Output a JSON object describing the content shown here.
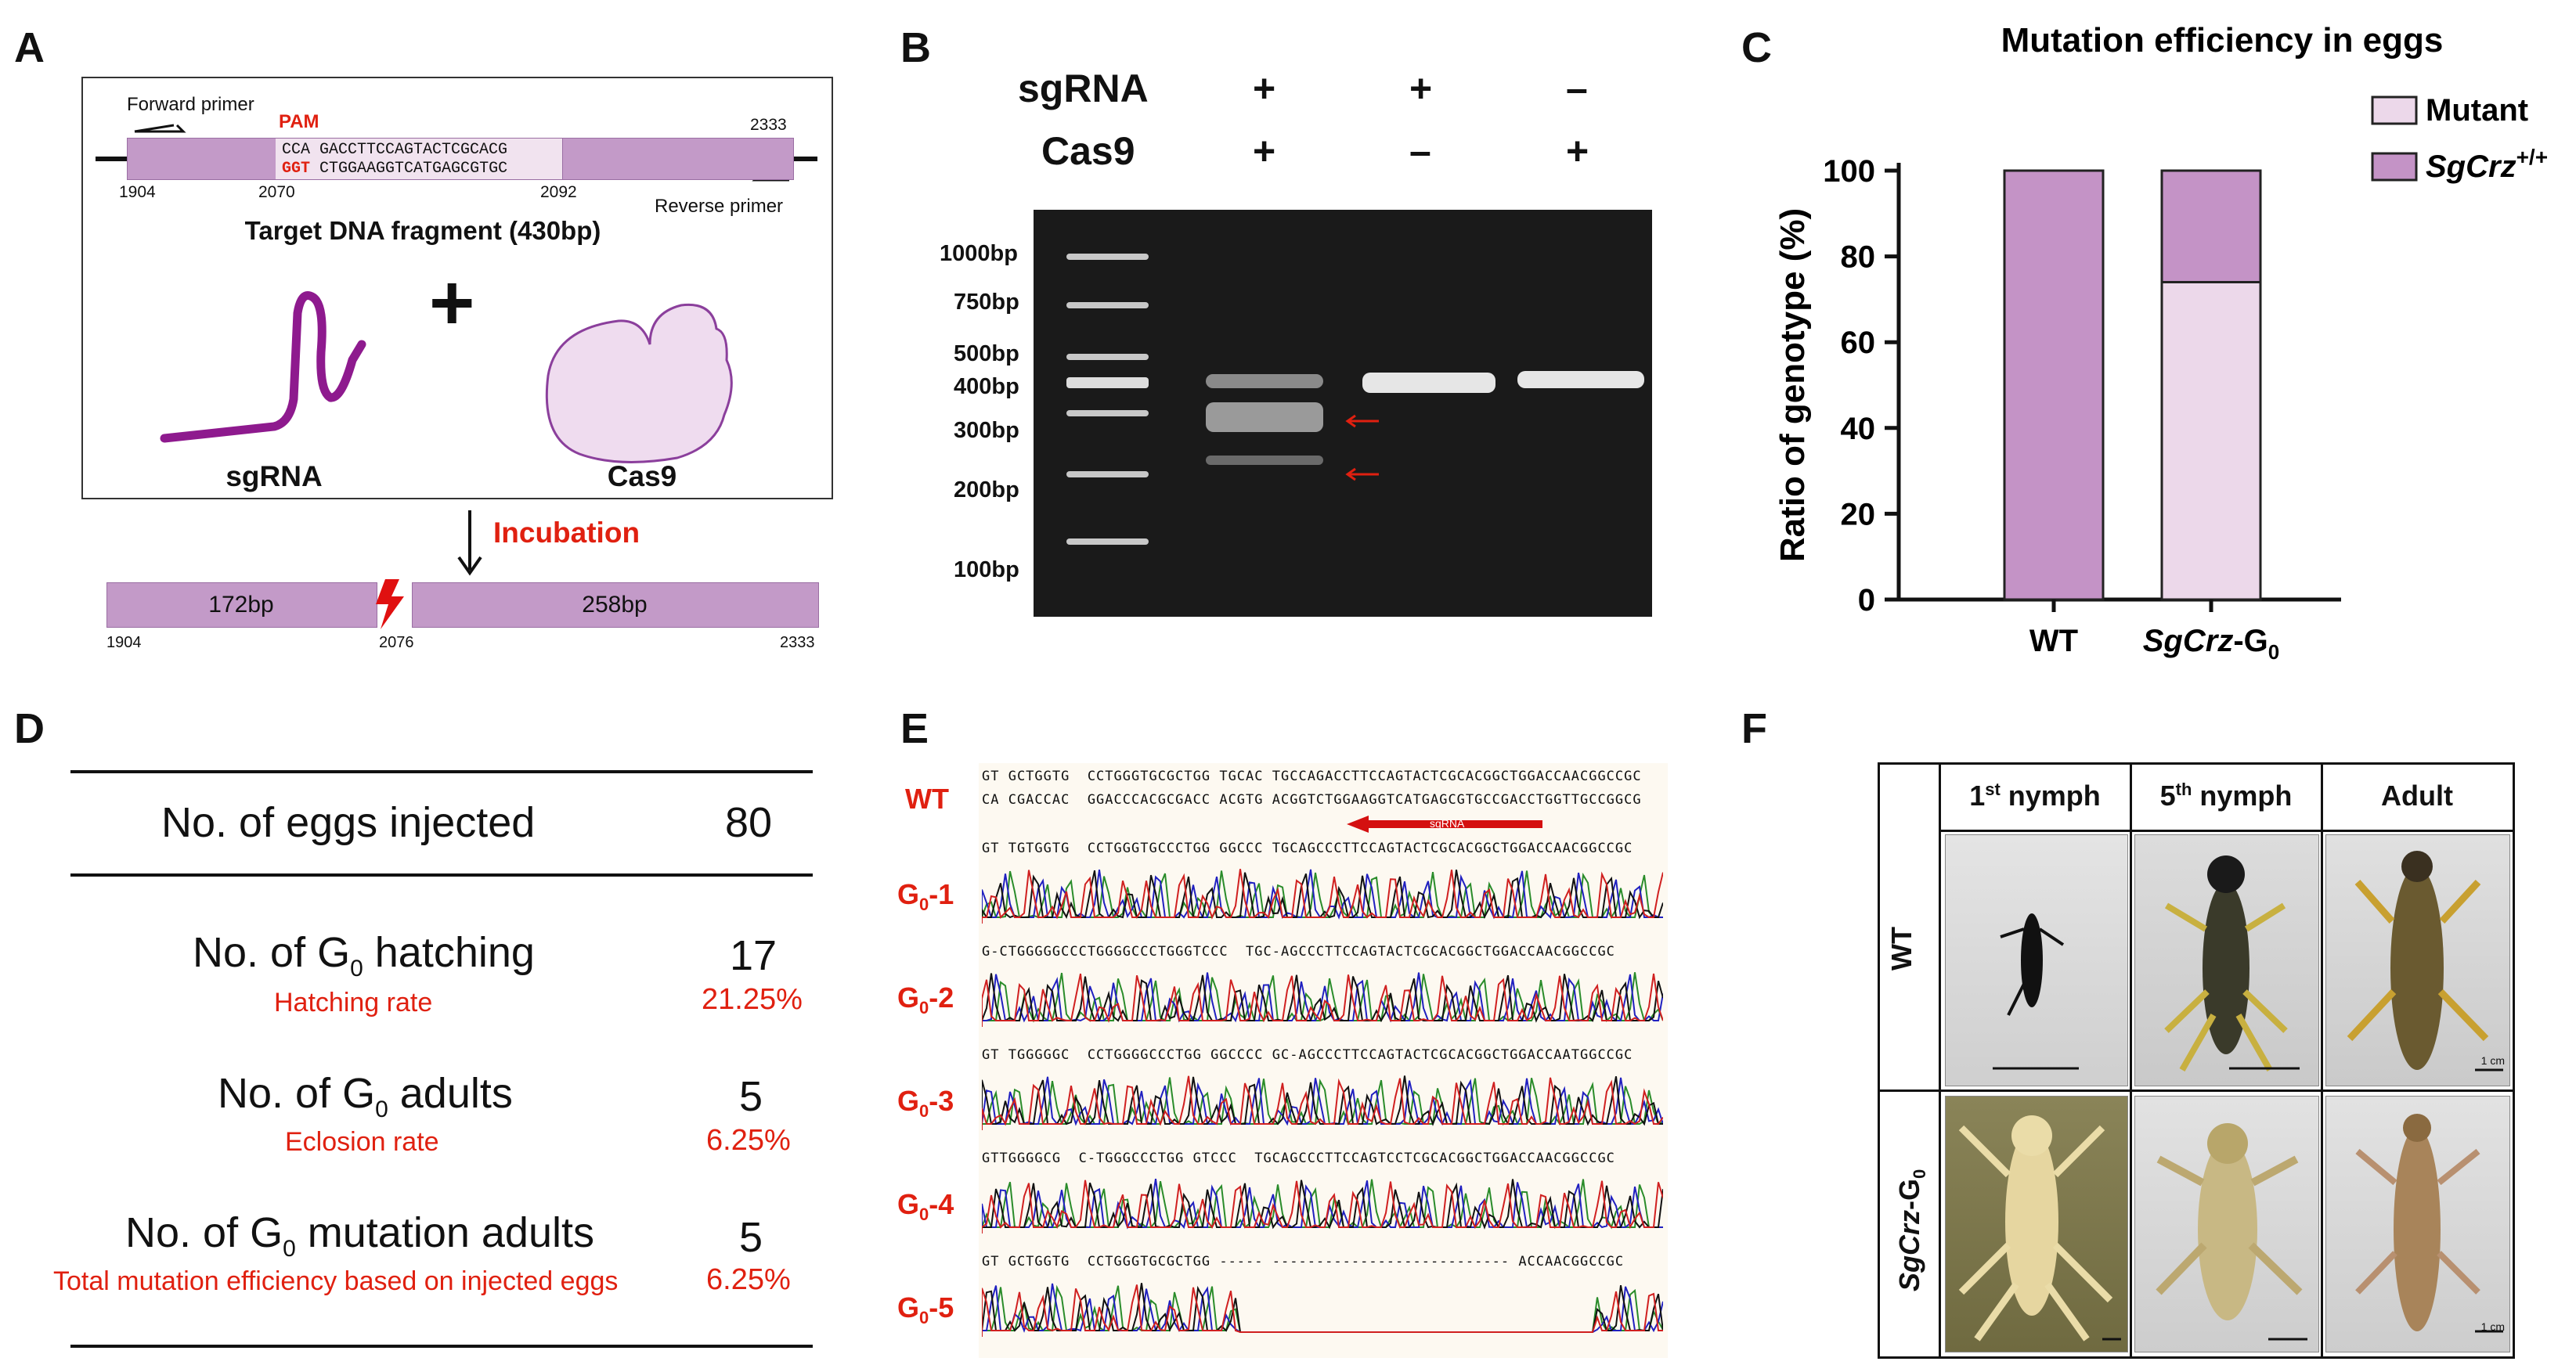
{
  "panels": {
    "a": "A",
    "b": "B",
    "c": "C",
    "d": "D",
    "e": "E",
    "f": "F"
  },
  "panelA": {
    "forward_primer": "Forward primer",
    "reverse_primer": "Reverse primer",
    "pam": "PAM",
    "seq_top": "CCA GACCTTCCAGTACTCGCACG",
    "seq_bottom_pam": "GGT",
    "seq_bottom": "CTGGAAGGTCATGAGCGTGC",
    "pos_1904": "1904",
    "pos_2070": "2070",
    "pos_2092": "2092",
    "pos_2333": "2333",
    "fragment_title": "Target DNA fragment (430bp)",
    "plus": "+",
    "sgrna": "sgRNA",
    "cas9": "Cas9",
    "incubation": "Incubation",
    "frag_left": "172bp",
    "frag_right": "258bp",
    "cut_pos": "2076",
    "bottom_1904": "1904",
    "bottom_2333": "2333"
  },
  "panelB": {
    "row1_label": "sgRNA",
    "row2_label": "Cas9",
    "lane1": {
      "sgrna": "+",
      "cas9": "+"
    },
    "lane2": {
      "sgrna": "+",
      "cas9": "–"
    },
    "lane3": {
      "sgrna": "–",
      "cas9": "+"
    },
    "ladder": [
      "1000bp",
      "750bp",
      "500bp",
      "400bp",
      "300bp",
      "200bp",
      "100bp"
    ]
  },
  "chart_data": {
    "type": "bar",
    "stacked": true,
    "title": "Mutation efficiency in eggs",
    "ylabel": "Ratio of  genotype (%)",
    "xlabel": "",
    "ylim": [
      0,
      100
    ],
    "yticks": [
      "0",
      "20",
      "40",
      "60",
      "80",
      "100"
    ],
    "categories": [
      "WT",
      "SgCrz-G0"
    ],
    "category_main": [
      "WT",
      "SgCrz"
    ],
    "category_suffix": [
      "",
      "-G"
    ],
    "category_sub": [
      "",
      "0"
    ],
    "series": [
      {
        "name": "Mutant",
        "values": [
          0,
          74
        ],
        "color": "#ecd8ea"
      },
      {
        "name": "SgCrz+/+",
        "values": [
          100,
          26
        ],
        "color": "#c493c6"
      }
    ],
    "legend": [
      {
        "text": "Mutant",
        "italic": false,
        "sup": ""
      },
      {
        "text": "SgCrz",
        "italic": true,
        "sup": "+/+"
      }
    ],
    "legend_position": "top-right"
  },
  "panelD": {
    "row1_label": "No. of eggs injected",
    "row1_value": "80",
    "row2_label_pre": "No. of G",
    "row2_sub": "0",
    "row2_label_post": " hatching",
    "row2_value": "17",
    "row2_rate_label": "Hatching rate",
    "row2_rate": "21.25%",
    "row3_label_pre": "No. of G",
    "row3_sub": "0",
    "row3_label_post": " adults",
    "row3_value": "5",
    "row3_rate_label": "Eclosion rate",
    "row3_rate": "6.25%",
    "row4_label_pre": "No. of G",
    "row4_sub": "0",
    "row4_label_post": " mutation adults",
    "row4_value": "5",
    "row4_rate_label": "Total mutation efficiency based on injected eggs",
    "row4_rate": "6.25%"
  },
  "panelE": {
    "wt": "WT",
    "sgrna_arrow": "sgRNA",
    "g_prefix": "G",
    "g_sub": "0",
    "samples": [
      "-1",
      "-2",
      "-3",
      "-4",
      "-5"
    ],
    "ref_seq": "GT GCTGGTG  CCTGGGTGCGCTGG TGCAC TGCCAGACCTTCCAGTACTCGCACGGCTGGACCAACGGCCGC",
    "ref_seq2": "CA CGACCAC  GGACCCACGCGACC ACGTG ACGGTCTGGAAGGTCATGAGCGTGCCGACCTGGTTGCCGGCG",
    "seqs": [
      "GT TGTGGTG  CCTGGGTGCCCTGG GGCCC TGCAGCCCTTCCAGTACTCGCACGGCTGGACCAACGGCCGC",
      "G-CTGGGGGCCCTGGGGCCCTGGGTCCC  TGC-AGCCCTTCCAGTACTCGCACGGCTGGACCAACGGCCGC",
      "GT TGGGGGC  CCTGGGGCCCTGG GGCCCC GC-AGCCCTTCCAGTACTCGCACGGCTGGACCAATGGCCGC",
      "GTTGGGGCG  C-TGGGCCCTGG GTCCC  TGCAGCCCTTCCAGTCCTCGCACGGCTGGACCAACGGCCGC",
      "GT GCTGGTG  CCTGGGTGCGCTGG ----- --------------------------- ACCAACGGCCGC"
    ]
  },
  "panelF": {
    "col1_pre": "1",
    "col1_sup": "st",
    "col1_post": " nymph",
    "col2_pre": "5",
    "col2_sup": "th",
    "col2_post": " nymph",
    "col3": "Adult",
    "row1": "WT",
    "row2_main": "SgCrz",
    "row2_suffix": "-G",
    "row2_sub": "0",
    "scale": "1 cm",
    "scale2": "1 cm"
  }
}
